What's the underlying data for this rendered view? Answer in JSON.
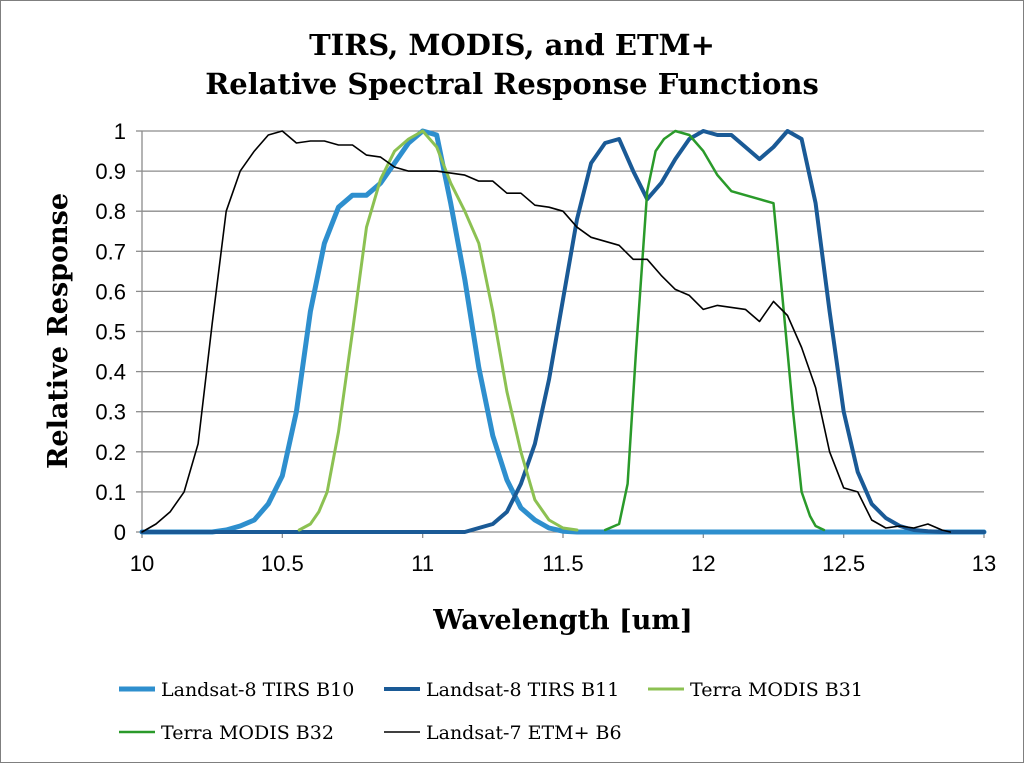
{
  "chart_data": {
    "type": "line",
    "title": [
      "TIRS, MODIS, and ETM+",
      "Relative Spectral Response Functions"
    ],
    "xlabel": "Wavelength [um]",
    "ylabel": "Relative Response",
    "xlim": [
      10,
      13
    ],
    "ylim": [
      0,
      1
    ],
    "xticks": [
      10,
      10.5,
      11,
      11.5,
      12,
      12.5,
      13
    ],
    "xtick_labels": [
      "10",
      "10.5",
      "11",
      "11.5",
      "12",
      "12.5",
      "13"
    ],
    "yticks": [
      0,
      0.1,
      0.2,
      0.3,
      0.4,
      0.5,
      0.6,
      0.7,
      0.8,
      0.9,
      1
    ],
    "ytick_labels": [
      "0",
      "0.1",
      "0.2",
      "0.3",
      "0.4",
      "0.5",
      "0.6",
      "0.7",
      "0.8",
      "0.9",
      "1"
    ],
    "grid": "horizontal",
    "legend_position": "bottom",
    "series": [
      {
        "name": "Landsat-8 TIRS B10",
        "color": "#2e8fce",
        "x": [
          10.0,
          10.25,
          10.3,
          10.35,
          10.4,
          10.45,
          10.5,
          10.55,
          10.6,
          10.65,
          10.7,
          10.75,
          10.8,
          10.85,
          10.9,
          10.95,
          11.0,
          11.05,
          11.1,
          11.15,
          11.2,
          11.25,
          11.3,
          11.35,
          11.4,
          11.45,
          11.5,
          11.55,
          11.6,
          13.0
        ],
        "y": [
          0,
          0,
          0.005,
          0.015,
          0.03,
          0.07,
          0.14,
          0.3,
          0.55,
          0.72,
          0.81,
          0.84,
          0.84,
          0.87,
          0.92,
          0.97,
          1.0,
          0.99,
          0.82,
          0.63,
          0.41,
          0.24,
          0.13,
          0.06,
          0.03,
          0.01,
          0.002,
          0,
          0,
          0
        ]
      },
      {
        "name": "Landsat-8 TIRS B11",
        "color": "#1a5a96",
        "x": [
          10.0,
          11.15,
          11.2,
          11.25,
          11.3,
          11.35,
          11.4,
          11.45,
          11.5,
          11.55,
          11.6,
          11.65,
          11.7,
          11.75,
          11.8,
          11.85,
          11.9,
          11.95,
          12.0,
          12.05,
          12.1,
          12.15,
          12.2,
          12.25,
          12.3,
          12.35,
          12.4,
          12.45,
          12.5,
          12.55,
          12.6,
          12.65,
          12.7,
          12.75,
          12.8,
          12.85,
          12.9,
          13.0
        ],
        "y": [
          0,
          0,
          0.01,
          0.02,
          0.05,
          0.12,
          0.22,
          0.38,
          0.58,
          0.78,
          0.92,
          0.97,
          0.98,
          0.9,
          0.83,
          0.87,
          0.93,
          0.98,
          1.0,
          0.99,
          0.99,
          0.96,
          0.93,
          0.96,
          1.0,
          0.98,
          0.82,
          0.55,
          0.3,
          0.15,
          0.07,
          0.035,
          0.015,
          0.005,
          0.002,
          0,
          0,
          0
        ]
      },
      {
        "name": "Terra MODIS B31",
        "color": "#8cc152",
        "x": [
          10.56,
          10.6,
          10.63,
          10.66,
          10.7,
          10.75,
          10.8,
          10.85,
          10.9,
          10.95,
          11.0,
          11.05,
          11.1,
          11.15,
          11.2,
          11.25,
          11.3,
          11.35,
          11.4,
          11.45,
          11.5,
          11.55
        ],
        "y": [
          0.005,
          0.02,
          0.05,
          0.1,
          0.25,
          0.5,
          0.76,
          0.88,
          0.95,
          0.98,
          1.0,
          0.96,
          0.87,
          0.8,
          0.72,
          0.55,
          0.35,
          0.2,
          0.08,
          0.03,
          0.01,
          0.005
        ]
      },
      {
        "name": "Terra MODIS B32",
        "color": "#2a9a2a",
        "x": [
          11.65,
          11.7,
          11.73,
          11.76,
          11.8,
          11.83,
          11.86,
          11.9,
          11.95,
          12.0,
          12.05,
          12.1,
          12.15,
          12.2,
          12.25,
          12.28,
          12.32,
          12.35,
          12.38,
          12.4,
          12.43
        ],
        "y": [
          0.005,
          0.02,
          0.12,
          0.45,
          0.85,
          0.95,
          0.98,
          1.0,
          0.99,
          0.95,
          0.89,
          0.85,
          0.84,
          0.83,
          0.82,
          0.6,
          0.3,
          0.1,
          0.04,
          0.015,
          0.005
        ]
      },
      {
        "name": "Landsat-7 ETM+ B6",
        "color": "#000000",
        "x": [
          10.0,
          10.05,
          10.1,
          10.15,
          10.2,
          10.25,
          10.3,
          10.35,
          10.4,
          10.45,
          10.5,
          10.55,
          10.6,
          10.65,
          10.7,
          10.75,
          10.8,
          10.85,
          10.9,
          10.95,
          11.0,
          11.05,
          11.1,
          11.15,
          11.2,
          11.25,
          11.3,
          11.35,
          11.4,
          11.45,
          11.5,
          11.55,
          11.6,
          11.65,
          11.7,
          11.75,
          11.8,
          11.85,
          11.9,
          11.95,
          12.0,
          12.05,
          12.1,
          12.15,
          12.2,
          12.25,
          12.3,
          12.35,
          12.4,
          12.45,
          12.5,
          12.55,
          12.6,
          12.65,
          12.7,
          12.75,
          12.8,
          12.85,
          12.88
        ],
        "y": [
          0,
          0.02,
          0.05,
          0.1,
          0.22,
          0.52,
          0.8,
          0.9,
          0.95,
          0.99,
          1.0,
          0.97,
          0.975,
          0.975,
          0.965,
          0.965,
          0.94,
          0.935,
          0.91,
          0.9,
          0.9,
          0.9,
          0.895,
          0.89,
          0.875,
          0.875,
          0.845,
          0.845,
          0.815,
          0.81,
          0.8,
          0.76,
          0.735,
          0.725,
          0.715,
          0.68,
          0.68,
          0.64,
          0.605,
          0.59,
          0.555,
          0.565,
          0.56,
          0.555,
          0.525,
          0.575,
          0.54,
          0.46,
          0.36,
          0.2,
          0.11,
          0.1,
          0.03,
          0.01,
          0.015,
          0.01,
          0.02,
          0.005,
          0.0
        ]
      }
    ]
  }
}
